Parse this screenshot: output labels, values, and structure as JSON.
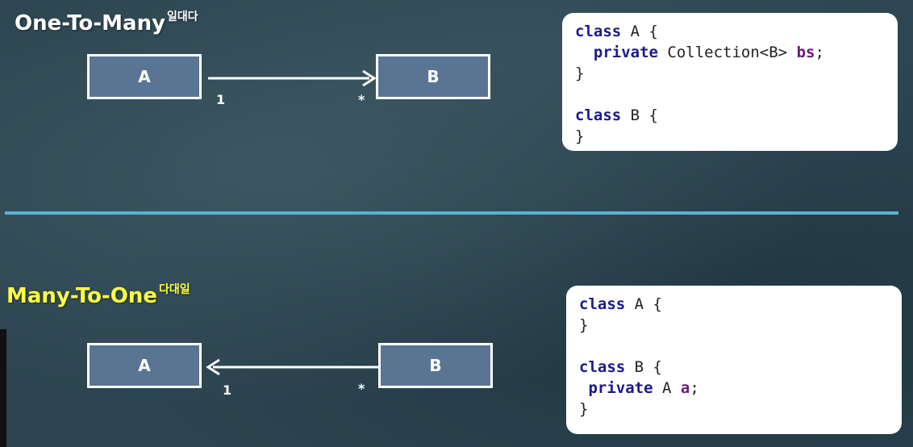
{
  "top": {
    "title": "One-To-Many",
    "title_sup": "일대다",
    "box_a": "A",
    "box_b": "B",
    "mult_a": "1",
    "mult_b": "*",
    "code": [
      {
        "parts": [
          {
            "t": "class",
            "c": "kw"
          },
          {
            "t": " A {",
            "c": ""
          }
        ]
      },
      {
        "parts": [
          {
            "t": "  ",
            "c": ""
          },
          {
            "t": "private",
            "c": "kw"
          },
          {
            "t": " Collection<B> ",
            "c": ""
          },
          {
            "t": "bs",
            "c": "id"
          },
          {
            "t": ";",
            "c": ""
          }
        ]
      },
      {
        "parts": [
          {
            "t": "}",
            "c": ""
          }
        ]
      },
      {
        "parts": [
          {
            "t": " ",
            "c": ""
          }
        ]
      },
      {
        "parts": [
          {
            "t": "class",
            "c": "kw"
          },
          {
            "t": " B {",
            "c": ""
          }
        ]
      },
      {
        "parts": [
          {
            "t": "}",
            "c": ""
          }
        ]
      }
    ]
  },
  "bottom": {
    "title": "Many-To-One",
    "title_sup": "다대일",
    "box_a": "A",
    "box_b": "B",
    "mult_a": "1",
    "mult_b": "*",
    "code": [
      {
        "parts": [
          {
            "t": "class",
            "c": "kw"
          },
          {
            "t": " A {",
            "c": ""
          }
        ]
      },
      {
        "parts": [
          {
            "t": "}",
            "c": ""
          }
        ]
      },
      {
        "parts": [
          {
            "t": " ",
            "c": ""
          }
        ]
      },
      {
        "parts": [
          {
            "t": "class",
            "c": "kw"
          },
          {
            "t": " B {",
            "c": ""
          }
        ]
      },
      {
        "parts": [
          {
            "t": " ",
            "c": ""
          },
          {
            "t": "private",
            "c": "kw"
          },
          {
            "t": " A ",
            "c": ""
          },
          {
            "t": "a",
            "c": "id"
          },
          {
            "t": ";",
            "c": ""
          }
        ]
      },
      {
        "parts": [
          {
            "t": "}",
            "c": ""
          }
        ]
      }
    ]
  },
  "colors": {
    "box_fill": "#5a7494",
    "top_title": "#ffffff",
    "bottom_title": "#ffff44",
    "divider": "#5fb0d0",
    "keyword": "#1a1a8c",
    "identifier": "#6a1a7a"
  }
}
